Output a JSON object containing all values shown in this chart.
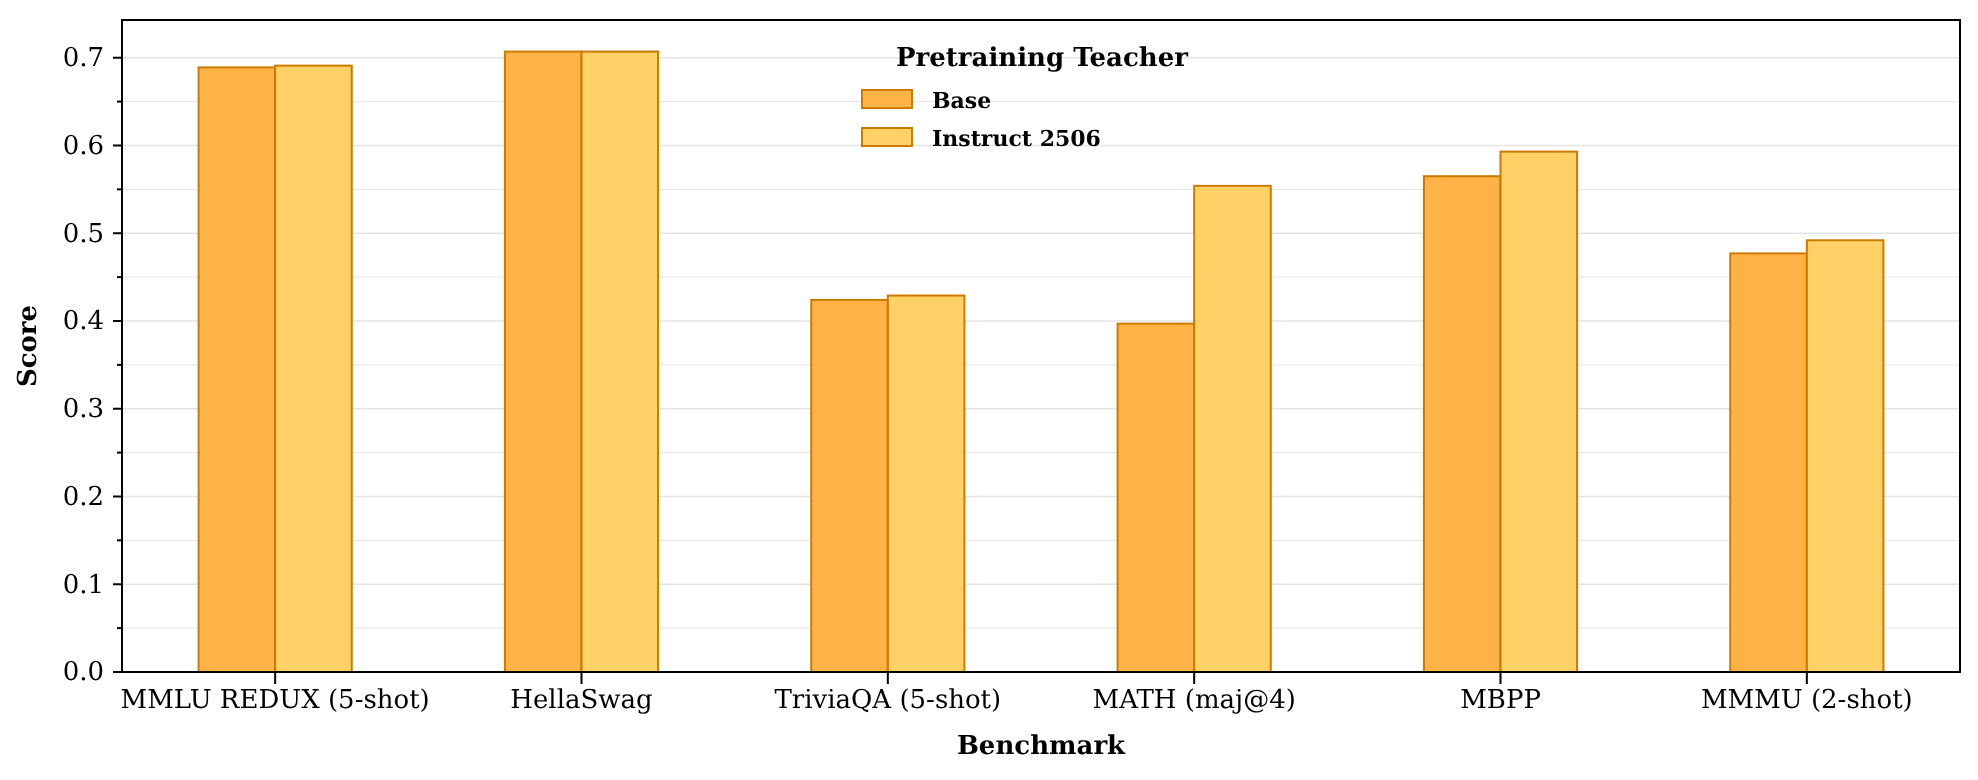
{
  "chart_data": {
    "type": "bar",
    "xlabel": "Benchmark",
    "ylabel": "Score",
    "legend_title": "Pretraining Teacher",
    "categories": [
      "MMLU REDUX (5-shot)",
      "HellaSwag",
      "TriviaQA (5-shot)",
      "MATH (maj@4)",
      "MBPP",
      "MMMU (2-shot)"
    ],
    "series": [
      {
        "name": "Base",
        "color": "#ffb347",
        "values": [
          0.689,
          0.707,
          0.424,
          0.397,
          0.565,
          0.477
        ]
      },
      {
        "name": "Instruct 2506",
        "color": "#ffd166",
        "values": [
          0.691,
          0.707,
          0.429,
          0.554,
          0.593,
          0.492
        ]
      }
    ],
    "ylim": [
      0,
      0.743
    ],
    "yticks": [
      {
        "value": 0,
        "label": "0.0"
      },
      {
        "value": 0.05,
        "label": null
      },
      {
        "value": 0.1,
        "label": "0.1"
      },
      {
        "value": 0.15,
        "label": null
      },
      {
        "value": 0.2,
        "label": "0.2"
      },
      {
        "value": 0.25,
        "label": null
      },
      {
        "value": 0.3,
        "label": "0.3"
      },
      {
        "value": 0.35,
        "label": null
      },
      {
        "value": 0.4,
        "label": "0.4"
      },
      {
        "value": 0.45,
        "label": null
      },
      {
        "value": 0.5,
        "label": "0.5"
      },
      {
        "value": 0.55,
        "label": null
      },
      {
        "value": 0.6,
        "label": "0.6"
      },
      {
        "value": 0.65,
        "label": null
      },
      {
        "value": 0.7,
        "label": "0.7"
      }
    ],
    "grid": "y",
    "legend": "top"
  }
}
